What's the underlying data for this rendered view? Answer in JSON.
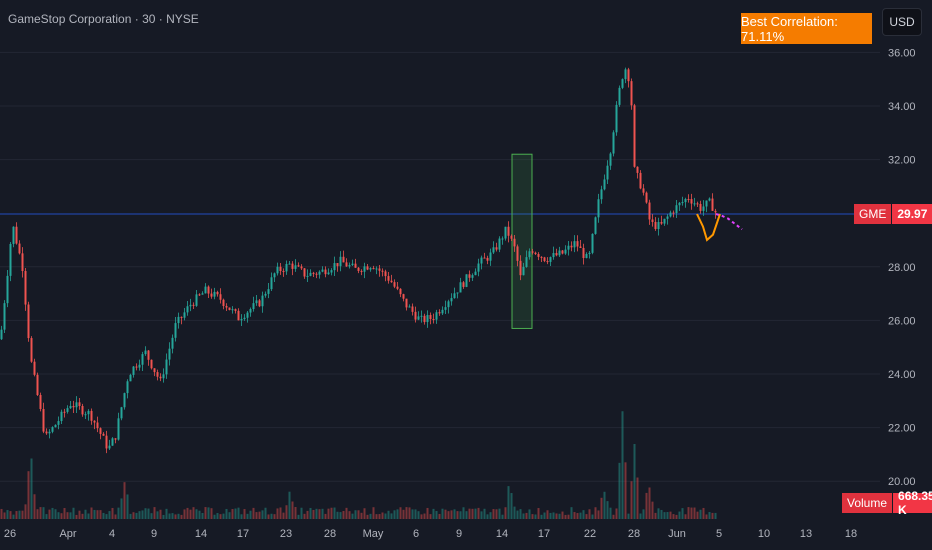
{
  "header": {
    "title": "GameStop Corporation · 30 · NYSE",
    "currency_button": "USD",
    "correlation_label": "Best Correlation: 71.11%"
  },
  "price_tag": {
    "symbol": "GME",
    "value": "29.97"
  },
  "volume_tag": {
    "label": "Volume",
    "value": "668.35 K"
  },
  "colors": {
    "background": "#161a25",
    "up": "#26a69a",
    "down": "#ef5350",
    "last_price_line": "#2962ff",
    "pattern_box": "#4caf50",
    "projection": "#ff9800",
    "forecast": "#e040fb",
    "badge": "#f57c00"
  },
  "chart_data": {
    "type": "candlestick",
    "symbol": "GME",
    "interval": "30",
    "exchange": "NYSE",
    "y_ticks": [
      "36.00",
      "34.00",
      "32.00",
      "28.00",
      "26.00",
      "24.00",
      "22.00",
      "20.00"
    ],
    "ylim": [
      19.3,
      36.4
    ],
    "x_ticks": [
      "26",
      "Apr",
      "4",
      "9",
      "14",
      "17",
      "23",
      "28",
      "May",
      "6",
      "9",
      "14",
      "17",
      "22",
      "28",
      "Jun",
      "5",
      "10",
      "13",
      "18"
    ],
    "last_price": 29.97,
    "close_path": [
      [
        0,
        25.3
      ],
      [
        12,
        29.6
      ],
      [
        22,
        28.0
      ],
      [
        30,
        24.6
      ],
      [
        45,
        21.6
      ],
      [
        70,
        22.9
      ],
      [
        90,
        22.5
      ],
      [
        108,
        21.2
      ],
      [
        115,
        21.7
      ],
      [
        128,
        24.0
      ],
      [
        145,
        24.8
      ],
      [
        160,
        23.7
      ],
      [
        175,
        25.8
      ],
      [
        190,
        26.6
      ],
      [
        205,
        27.1
      ],
      [
        220,
        26.8
      ],
      [
        238,
        26.1
      ],
      [
        260,
        26.7
      ],
      [
        275,
        27.8
      ],
      [
        290,
        28.1
      ],
      [
        305,
        27.7
      ],
      [
        320,
        27.8
      ],
      [
        340,
        28.2
      ],
      [
        355,
        27.9
      ],
      [
        372,
        28.1
      ],
      [
        390,
        27.5
      ],
      [
        405,
        26.6
      ],
      [
        420,
        26.0
      ],
      [
        432,
        26.1
      ],
      [
        448,
        26.8
      ],
      [
        465,
        27.5
      ],
      [
        478,
        28.1
      ],
      [
        492,
        28.5
      ],
      [
        506,
        29.4
      ],
      [
        515,
        28.6
      ],
      [
        520,
        27.6
      ],
      [
        530,
        28.7
      ],
      [
        545,
        28.3
      ],
      [
        562,
        28.5
      ],
      [
        575,
        28.9
      ],
      [
        588,
        28.2
      ],
      [
        598,
        30.4
      ],
      [
        610,
        32.4
      ],
      [
        618,
        34.4
      ],
      [
        624,
        35.5
      ],
      [
        630,
        34.9
      ],
      [
        634,
        31.6
      ],
      [
        642,
        30.9
      ],
      [
        650,
        29.6
      ],
      [
        660,
        29.5
      ],
      [
        672,
        30.1
      ],
      [
        688,
        30.6
      ],
      [
        700,
        30.2
      ],
      [
        710,
        30.4
      ],
      [
        716,
        29.97
      ]
    ],
    "pattern_box": {
      "x_from": "May 15",
      "x_to": "May 17",
      "y_from": 25.7,
      "y_to": 32.2
    },
    "projection_path": [
      [
        697,
        29.97
      ],
      [
        703,
        29.5
      ],
      [
        707,
        29.0
      ],
      [
        713,
        29.2
      ],
      [
        720,
        29.97
      ]
    ],
    "forecast_path": [
      [
        716,
        29.97
      ],
      [
        722,
        29.9
      ],
      [
        728,
        29.8
      ],
      [
        735,
        29.6
      ],
      [
        742,
        29.4
      ]
    ],
    "volume": {
      "last": "668.35 K",
      "spikes": [
        [
          30,
          0.7
        ],
        [
          124,
          0.35
        ],
        [
          290,
          0.25
        ],
        [
          509,
          0.3
        ],
        [
          603,
          0.3
        ],
        [
          622,
          1.0
        ],
        [
          634,
          0.75
        ],
        [
          648,
          0.35
        ]
      ]
    }
  }
}
